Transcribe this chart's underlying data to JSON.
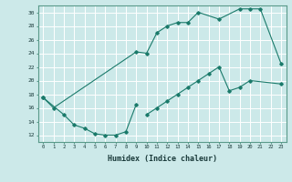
{
  "title": "",
  "xlabel": "Humidex (Indice chaleur)",
  "ylabel": "",
  "bg_color": "#cce9e9",
  "grid_color": "#ffffff",
  "line_color": "#1a7a6a",
  "xlim": [
    -0.5,
    23.5
  ],
  "ylim": [
    11,
    31
  ],
  "xticks": [
    0,
    1,
    2,
    3,
    4,
    5,
    6,
    7,
    8,
    9,
    10,
    11,
    12,
    13,
    14,
    15,
    16,
    17,
    18,
    19,
    20,
    21,
    22,
    23
  ],
  "yticks": [
    12,
    14,
    16,
    18,
    20,
    22,
    24,
    26,
    28,
    30
  ],
  "series": [
    {
      "x": [
        0,
        1,
        9,
        10,
        11,
        12,
        13,
        14,
        15,
        17,
        19,
        20,
        21,
        23
      ],
      "y": [
        17.5,
        16.0,
        24.2,
        24.0,
        27.0,
        28.0,
        28.5,
        28.5,
        30.0,
        29.0,
        30.5,
        30.5,
        30.5,
        22.5
      ]
    },
    {
      "x": [
        10,
        11,
        12,
        13,
        14,
        15,
        16,
        17,
        18,
        19,
        20,
        23
      ],
      "y": [
        15.0,
        16.0,
        17.0,
        18.0,
        19.0,
        20.0,
        21.0,
        22.0,
        18.5,
        19.0,
        20.0,
        19.5
      ]
    },
    {
      "x": [
        0,
        2,
        3,
        4,
        5,
        6,
        7,
        8,
        9
      ],
      "y": [
        17.5,
        15.0,
        13.5,
        13.0,
        12.2,
        12.0,
        12.0,
        12.5,
        16.5
      ]
    }
  ]
}
